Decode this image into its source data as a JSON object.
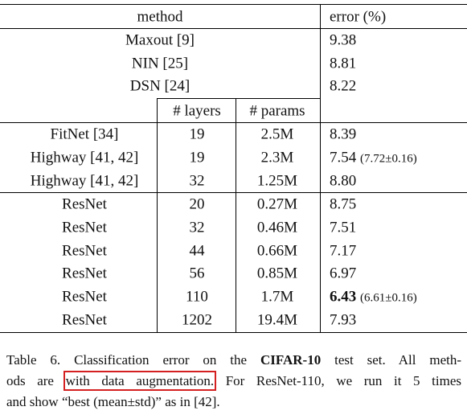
{
  "header": {
    "method": "method",
    "error": "error (%)"
  },
  "top_rows": [
    {
      "method": "Maxout [9]",
      "error": "9.38"
    },
    {
      "method": "NIN [25]",
      "error": "8.81"
    },
    {
      "method": "DSN [24]",
      "error": "8.22"
    }
  ],
  "subheader": {
    "layers": "# layers",
    "params": "# params"
  },
  "rows": [
    {
      "method": "FitNet [34]",
      "layers": "19",
      "params": "2.5M",
      "error": "8.39"
    },
    {
      "method": "Highway [41, 42]",
      "layers": "19",
      "params": "2.3M",
      "error": "7.54",
      "note": "(7.72±0.16)"
    },
    {
      "method": "Highway [41, 42]",
      "layers": "32",
      "params": "1.25M",
      "error": "8.80"
    },
    {
      "method": "ResNet",
      "layers": "20",
      "params": "0.27M",
      "error": "8.75"
    },
    {
      "method": "ResNet",
      "layers": "32",
      "params": "0.46M",
      "error": "7.51"
    },
    {
      "method": "ResNet",
      "layers": "44",
      "params": "0.66M",
      "error": "7.17"
    },
    {
      "method": "ResNet",
      "layers": "56",
      "params": "0.85M",
      "error": "6.97"
    },
    {
      "method": "ResNet",
      "layers": "110",
      "params": "1.7M",
      "error": "6.43",
      "note": "(6.61±0.16)"
    },
    {
      "method": "ResNet",
      "layers": "1202",
      "params": "19.4M",
      "error": "7.93"
    }
  ],
  "caption": {
    "line1_a": "Table 6. Classification error on the ",
    "line1_bold": "CIFAR-10",
    "line1_b": " test set. All meth-",
    "line2_a": "ods are ",
    "line2_highlight": "with data augmentation.",
    "line2_b": " For ResNet-110, we run it 5 times",
    "line3": "and show “best (mean±std)” as in [42]."
  }
}
